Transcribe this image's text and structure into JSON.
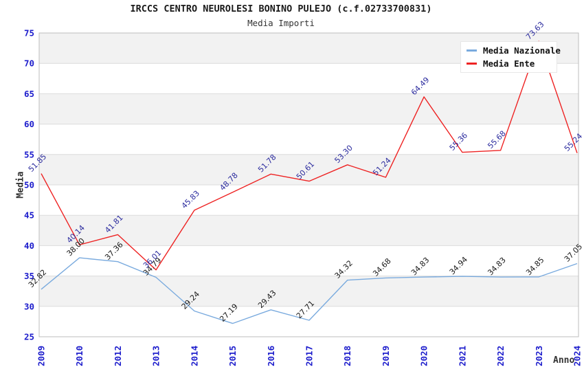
{
  "header": {
    "title": "IRCCS CENTRO NEUROLESI BONINO PULEJO (c.f.02733700831)",
    "subtitle": "Media Importi"
  },
  "axes": {
    "x_label": "Anno",
    "y_label": "Media"
  },
  "legend": {
    "position": "top-right",
    "items": [
      {
        "label": "Media Nazionale",
        "color": "#79aade"
      },
      {
        "label": "Media Ente",
        "color": "#ee2222"
      }
    ]
  },
  "chart_data": {
    "type": "line",
    "title": "IRCCS CENTRO NEUROLESI BONINO PULEJO (c.f.02733700831)",
    "subtitle": "Media Importi",
    "xlabel": "Anno",
    "ylabel": "Media",
    "categories": [
      "2009",
      "2010",
      "2012",
      "2013",
      "2014",
      "2015",
      "2016",
      "2017",
      "2018",
      "2019",
      "2020",
      "2021",
      "2022",
      "2023",
      "2024"
    ],
    "series": [
      {
        "name": "Media Nazionale",
        "color": "#79aade",
        "label_color": "#1a1a1a",
        "values": [
          32.82,
          38.0,
          37.36,
          34.79,
          29.24,
          27.19,
          29.43,
          27.71,
          34.32,
          34.68,
          34.83,
          34.94,
          34.83,
          34.85,
          37.05
        ]
      },
      {
        "name": "Media Ente",
        "color": "#ee2222",
        "label_color": "#2b2b9e",
        "values": [
          51.85,
          40.14,
          41.81,
          36.01,
          45.83,
          48.78,
          51.78,
          50.61,
          53.3,
          51.24,
          64.49,
          55.36,
          55.68,
          73.63,
          55.24
        ]
      }
    ],
    "ylim": [
      25,
      75
    ],
    "yticks": [
      25,
      30,
      35,
      40,
      45,
      50,
      55,
      60,
      65,
      70,
      75
    ],
    "grid": true,
    "legend_position": "top-right",
    "band_fill": "#f2f2f2",
    "gridline_color": "#dcdcdc",
    "border_color": "#bdbdbd",
    "tick_label_color": "#1c1ccc"
  }
}
